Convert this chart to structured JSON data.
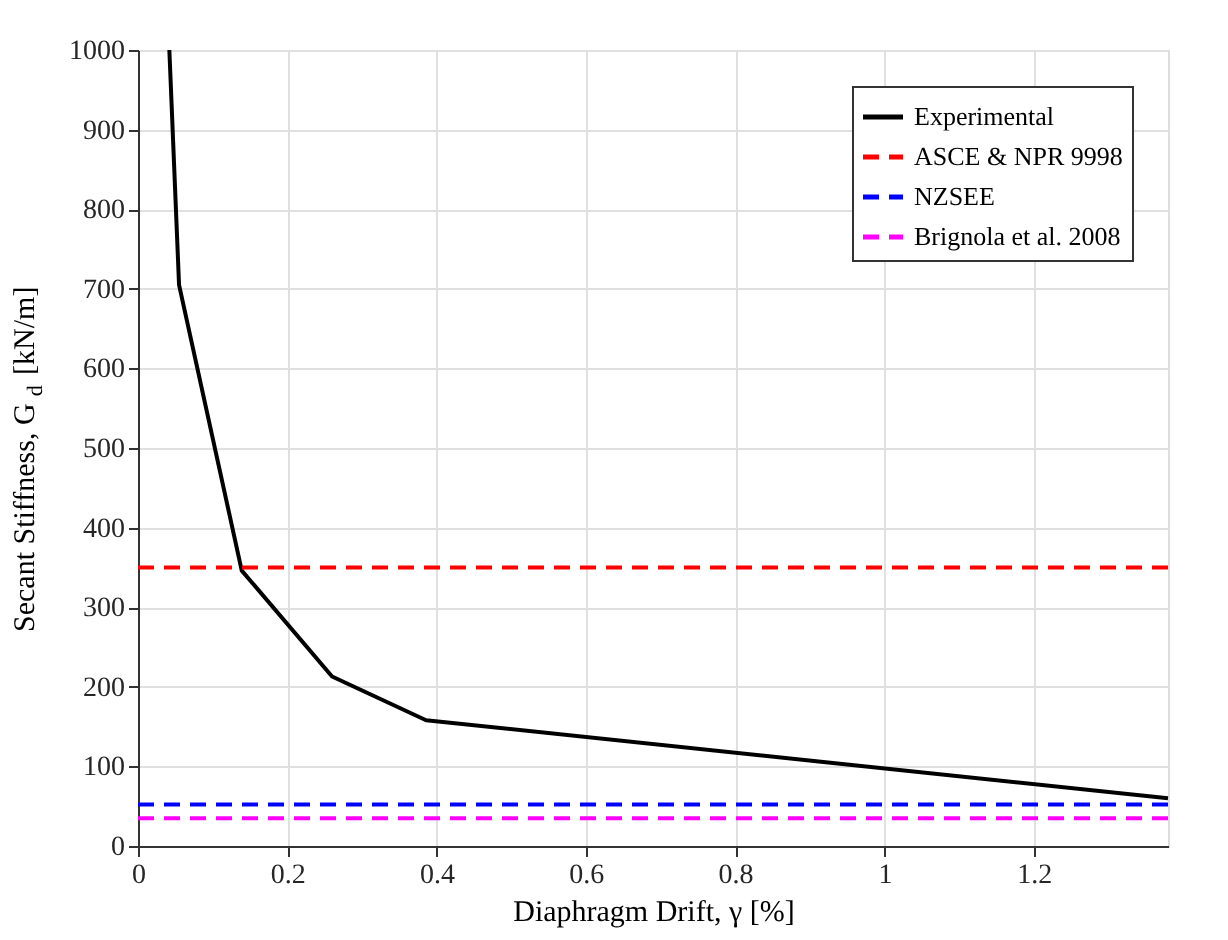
{
  "chart_data": {
    "type": "line",
    "xlabel": "Diaphragm Drift, γ [%]",
    "ylabel": "Secant Stiffness, G$_{d}$ [kN/m]",
    "xlim": [
      0,
      1.38
    ],
    "ylim": [
      0,
      1000
    ],
    "xticks": [
      0,
      0.2,
      0.4,
      0.6,
      0.8,
      1,
      1.2
    ],
    "yticks": [
      0,
      100,
      200,
      300,
      400,
      500,
      600,
      700,
      800,
      900,
      1000
    ],
    "grid": true,
    "legend": "top right",
    "series": [
      {
        "name": "Experimental",
        "color": "#000000",
        "line_style": "solid",
        "x": [
          0.042,
          0.055,
          0.139,
          0.26,
          0.386,
          1.38
        ],
        "values": [
          1000,
          705,
          346,
          213,
          158,
          60
        ]
      },
      {
        "name": "ASCE & NPR 9998",
        "color": "#ff0000",
        "line_style": "dashed",
        "x": [
          0,
          1.38
        ],
        "values": [
          350,
          350
        ]
      },
      {
        "name": "NZSEE",
        "color": "#0000ff",
        "line_style": "dashed",
        "x": [
          0,
          1.38
        ],
        "values": [
          52,
          52
        ]
      },
      {
        "name": "Brignola et al. 2008",
        "color": "#ff00ff",
        "line_style": "dashed",
        "x": [
          0,
          1.38
        ],
        "values": [
          35,
          35
        ]
      }
    ]
  }
}
